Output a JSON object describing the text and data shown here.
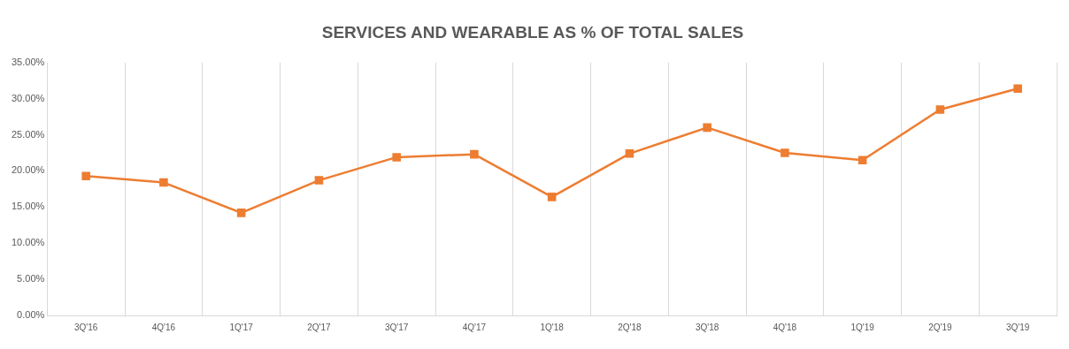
{
  "chart_data": {
    "type": "line",
    "title": "SERVICES AND WEARABLE AS % OF TOTAL SALES",
    "categories": [
      "3Q'16",
      "4Q'16",
      "1Q'17",
      "2Q'17",
      "3Q'17",
      "4Q'17",
      "1Q'18",
      "2Q'18",
      "3Q'18",
      "4Q'18",
      "1Q'19",
      "2Q'19",
      "3Q'19"
    ],
    "series": [
      {
        "color": "#ed7d31",
        "values": [
          19.3,
          18.4,
          14.2,
          18.7,
          21.9,
          22.3,
          16.4,
          22.4,
          26.0,
          22.5,
          21.5,
          28.5,
          31.4
        ]
      }
    ],
    "ylim": [
      0,
      35
    ],
    "yticks": [
      {
        "value": 0,
        "label": "0.00%"
      },
      {
        "value": 5,
        "label": "5.00%"
      },
      {
        "value": 10,
        "label": "10.00%"
      },
      {
        "value": 15,
        "label": "15.00%"
      },
      {
        "value": 20,
        "label": "20.00%"
      },
      {
        "value": 25,
        "label": "25.00%"
      },
      {
        "value": 30,
        "label": "30.00%"
      },
      {
        "value": 35,
        "label": "35.00%"
      }
    ],
    "grid": "x",
    "legend": false,
    "marker": "square",
    "line_style": "solid"
  }
}
